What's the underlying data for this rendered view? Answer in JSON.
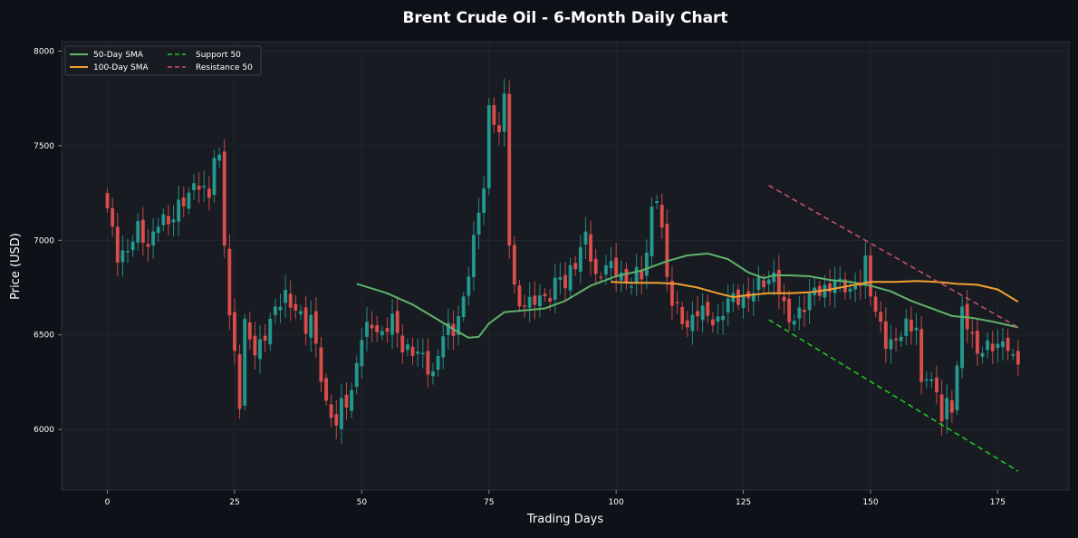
{
  "chart_data": {
    "type": "candlestick",
    "title": "Brent Crude Oil - 6-Month Daily Chart",
    "xlabel": "Trading Days",
    "ylabel": "Price (USD)",
    "xlim": [
      -9,
      189
    ],
    "ylim": [
      5680,
      8050
    ],
    "x_ticks": [
      0,
      25,
      50,
      75,
      100,
      125,
      150,
      175
    ],
    "y_ticks": [
      6000,
      6500,
      7000,
      7500,
      8000
    ],
    "grid": true,
    "legend_position": "top-left",
    "colors": {
      "background": "#0f1118",
      "plot_background": "#181c22",
      "bullish": "#26a69a",
      "bearish": "#ef5350",
      "sma50": "#5fb36b",
      "sma100": "#f0a030",
      "support": "#22cc22",
      "resistance": "#cc5566",
      "text": "#ffffff"
    },
    "legend": [
      {
        "label": "50-Day SMA",
        "color": "#5fb36b",
        "style": "solid"
      },
      {
        "label": "100-Day SMA",
        "color": "#f0a030",
        "style": "solid"
      },
      {
        "label": "Support 50",
        "color": "#22cc22",
        "style": "dashed"
      },
      {
        "label": "Resistance 50",
        "color": "#cc5566",
        "style": "dashed"
      }
    ],
    "close_anchors": [
      [
        0,
        7150
      ],
      [
        2,
        6930
      ],
      [
        4,
        6950
      ],
      [
        6,
        7050
      ],
      [
        8,
        6980
      ],
      [
        10,
        7100
      ],
      [
        12,
        7080
      ],
      [
        14,
        7200
      ],
      [
        16,
        7230
      ],
      [
        18,
        7300
      ],
      [
        20,
        7250
      ],
      [
        21,
        7450
      ],
      [
        22,
        7400
      ],
      [
        23,
        6990
      ],
      [
        24,
        6600
      ],
      [
        25,
        6420
      ],
      [
        26,
        6150
      ],
      [
        27,
        6540
      ],
      [
        29,
        6400
      ],
      [
        31,
        6520
      ],
      [
        33,
        6620
      ],
      [
        35,
        6710
      ],
      [
        37,
        6650
      ],
      [
        39,
        6520
      ],
      [
        40,
        6580
      ],
      [
        41,
        6460
      ],
      [
        42,
        6300
      ],
      [
        43,
        6120
      ],
      [
        45,
        6010
      ],
      [
        46,
        6140
      ],
      [
        48,
        6200
      ],
      [
        50,
        6480
      ],
      [
        52,
        6570
      ],
      [
        54,
        6500
      ],
      [
        56,
        6570
      ],
      [
        58,
        6450
      ],
      [
        60,
        6410
      ],
      [
        62,
        6370
      ],
      [
        64,
        6300
      ],
      [
        66,
        6500
      ],
      [
        68,
        6520
      ],
      [
        70,
        6700
      ],
      [
        72,
        6980
      ],
      [
        74,
        7300
      ],
      [
        75,
        7700
      ],
      [
        76,
        7650
      ],
      [
        77,
        7550
      ],
      [
        78,
        7740
      ],
      [
        79,
        7000
      ],
      [
        80,
        6750
      ],
      [
        81,
        6680
      ],
      [
        83,
        6650
      ],
      [
        85,
        6700
      ],
      [
        87,
        6720
      ],
      [
        89,
        6800
      ],
      [
        90,
        6750
      ],
      [
        91,
        6850
      ],
      [
        93,
        6950
      ],
      [
        94,
        7020
      ],
      [
        95,
        6900
      ],
      [
        96,
        6790
      ],
      [
        98,
        6890
      ],
      [
        100,
        6820
      ],
      [
        102,
        6780
      ],
      [
        104,
        6830
      ],
      [
        105,
        6800
      ],
      [
        106,
        6920
      ],
      [
        107,
        7150
      ],
      [
        108,
        7260
      ],
      [
        109,
        7060
      ],
      [
        110,
        6800
      ],
      [
        111,
        6660
      ],
      [
        112,
        6620
      ],
      [
        114,
        6560
      ],
      [
        116,
        6620
      ],
      [
        118,
        6600
      ],
      [
        120,
        6580
      ],
      [
        122,
        6670
      ],
      [
        124,
        6700
      ],
      [
        126,
        6710
      ],
      [
        128,
        6750
      ],
      [
        130,
        6800
      ],
      [
        131,
        6830
      ],
      [
        132,
        6750
      ],
      [
        133,
        6630
      ],
      [
        134,
        6560
      ],
      [
        136,
        6630
      ],
      [
        138,
        6700
      ],
      [
        140,
        6730
      ],
      [
        142,
        6760
      ],
      [
        143,
        6800
      ],
      [
        144,
        6750
      ],
      [
        146,
        6730
      ],
      [
        148,
        6810
      ],
      [
        149,
        6880
      ],
      [
        150,
        6700
      ],
      [
        151,
        6620
      ],
      [
        152,
        6550
      ],
      [
        153,
        6480
      ],
      [
        155,
        6450
      ],
      [
        157,
        6550
      ],
      [
        159,
        6560
      ],
      [
        160,
        6220
      ],
      [
        161,
        6280
      ],
      [
        162,
        6230
      ],
      [
        163,
        6200
      ],
      [
        164,
        6090
      ],
      [
        165,
        6140
      ],
      [
        166,
        6100
      ],
      [
        167,
        6320
      ],
      [
        168,
        6620
      ],
      [
        169,
        6580
      ],
      [
        170,
        6500
      ],
      [
        171,
        6400
      ],
      [
        173,
        6420
      ],
      [
        175,
        6470
      ],
      [
        177,
        6440
      ],
      [
        178,
        6350
      ],
      [
        179,
        6340
      ]
    ],
    "sma50": {
      "name": "50-Day SMA",
      "x": [
        49,
        55,
        60,
        65,
        68,
        71,
        73,
        75,
        78,
        82,
        86,
        90,
        95,
        100,
        105,
        110,
        114,
        118,
        122,
        126,
        129,
        131,
        134,
        138,
        142,
        146,
        150,
        154,
        158,
        162,
        166,
        170,
        174,
        179
      ],
      "y": [
        6770,
        6720,
        6660,
        6580,
        6530,
        6485,
        6490,
        6560,
        6620,
        6630,
        6640,
        6680,
        6760,
        6810,
        6840,
        6890,
        6920,
        6930,
        6900,
        6830,
        6800,
        6815,
        6815,
        6810,
        6790,
        6780,
        6760,
        6730,
        6680,
        6640,
        6600,
        6590,
        6570,
        6540
      ]
    },
    "sma100": {
      "name": "100-Day SMA",
      "x": [
        99,
        103,
        108,
        112,
        116,
        120,
        123,
        126,
        130,
        134,
        138,
        142,
        146,
        150,
        155,
        159,
        163,
        167,
        171,
        175,
        179
      ],
      "y": [
        6780,
        6775,
        6775,
        6770,
        6750,
        6720,
        6700,
        6710,
        6720,
        6720,
        6725,
        6740,
        6760,
        6780,
        6780,
        6785,
        6780,
        6770,
        6765,
        6740,
        6675
      ]
    },
    "support": {
      "name": "Support 50",
      "x": [
        130,
        179
      ],
      "y": [
        6580,
        5780
      ]
    },
    "resistance": {
      "name": "Resistance 50",
      "x": [
        130,
        179
      ],
      "y": [
        7290,
        6540
      ]
    }
  }
}
